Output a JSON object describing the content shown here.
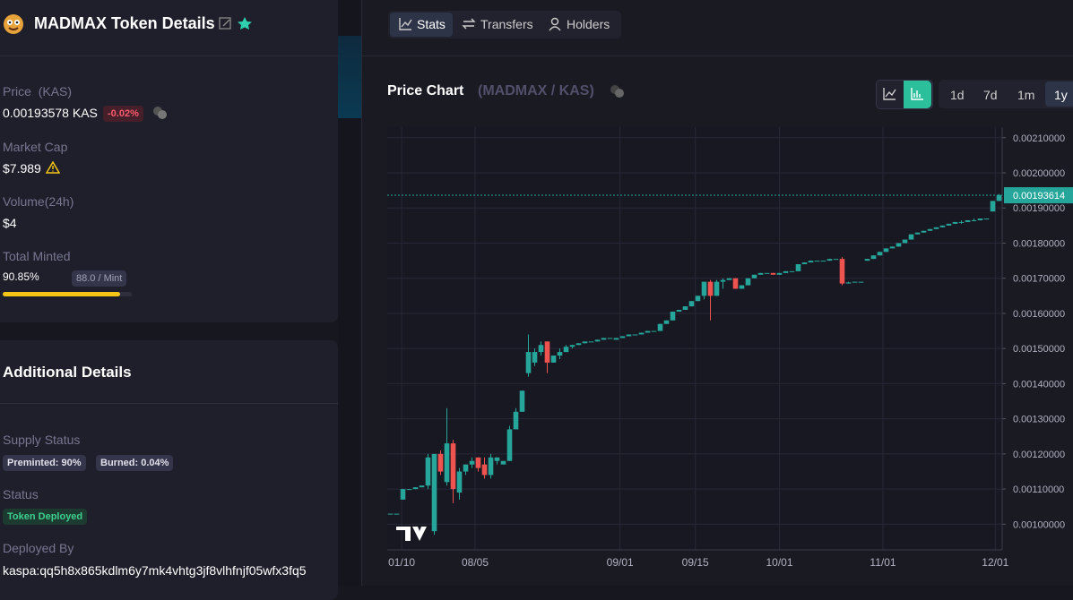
{
  "token": {
    "title": "MADMAX Token Details",
    "price_label": "Price",
    "price_unit": "(KAS)",
    "price": "0.00193578 KAS",
    "change": "-0.02%",
    "market_cap_label": "Market Cap",
    "market_cap": "$7.989",
    "volume_label": "Volume(24h)",
    "volume": "$4",
    "minted_label": "Total Minted",
    "minted": "90.85%",
    "minted_progress": 90.85,
    "per_mint": "88.0 / Mint"
  },
  "details": {
    "title": "Additional Details",
    "supply_label": "Supply Status",
    "preminted": "Preminted: 90%",
    "burned": "Burned: 0.04%",
    "status_label": "Status",
    "status": "Token Deployed",
    "deployed_label": "Deployed By",
    "deployed": "kaspa:qq5h8x865kdlm6y7mk4vhtg3jf8vlhfnjf05wfx3fq5"
  },
  "tabs": [
    "Stats",
    "Transfers",
    "Holders"
  ],
  "chart_header": {
    "title": "Price Chart",
    "pair": "(MADMAX / KAS)"
  },
  "ranges": [
    "1d",
    "7d",
    "1m",
    "1y"
  ],
  "chart_data": {
    "type": "candlestick",
    "up_color": "#26a69a",
    "down_color": "#ef5350",
    "open": [
      0.00103,
      0.00103,
      0.00107,
      0.0011,
      0.0011,
      0.001105,
      0.00111,
      0.00098,
      0.0012,
      0.00112,
      0.00123,
      0.00109,
      0.00115,
      0.00117,
      0.00119,
      0.00117,
      0.00114,
      0.00118,
      0.00117,
      0.00118,
      0.00127,
      0.00132,
      0.00143,
      0.00146,
      0.00149,
      0.00152,
      0.00146,
      0.00148,
      0.00149,
      0.001505,
      0.00151,
      0.001515,
      0.00152,
      0.00152,
      0.001525,
      0.00153,
      0.001525,
      0.00153,
      0.001535,
      0.00154,
      0.00154,
      0.001545,
      0.00155,
      0.00155,
      0.00157,
      0.00158,
      0.001605,
      0.00161,
      0.00162,
      0.001635,
      0.00165,
      0.00169,
      0.00165,
      0.00169,
      0.001695,
      0.0017,
      0.00167,
      0.00168,
      0.0017,
      0.00171,
      0.001715,
      0.001715,
      0.00171,
      0.001715,
      0.00172,
      0.00172,
      0.00174,
      0.001745,
      0.00175,
      0.00175,
      0.00175,
      0.001755,
      0.001755,
      0.001685,
      0.001688,
      0.00169,
      0.00175,
      0.001755,
      0.001765,
      0.001775,
      0.001785,
      0.00179,
      0.0018,
      0.00181,
      0.001825,
      0.00183,
      0.001835,
      0.00184,
      0.001845,
      0.00185,
      0.001855,
      0.00186,
      0.00186,
      0.001865,
      0.001865,
      0.00187,
      0.00189,
      0.00192
    ],
    "high": [
      0.00103,
      0.00103,
      0.0011,
      0.0011,
      0.001105,
      0.00111,
      0.0012,
      0.0012,
      0.00121,
      0.00133,
      0.00124,
      0.00116,
      0.00117,
      0.00119,
      0.00119,
      0.00119,
      0.0012,
      0.00119,
      0.00118,
      0.00128,
      0.00133,
      0.00138,
      0.00154,
      0.0015,
      0.00152,
      0.00152,
      0.00148,
      0.0015,
      0.00151,
      0.00151,
      0.001515,
      0.00152,
      0.00152,
      0.001525,
      0.00153,
      0.00153,
      0.00153,
      0.001535,
      0.00154,
      0.00154,
      0.001545,
      0.00155,
      0.00155,
      0.00157,
      0.00158,
      0.001605,
      0.00161,
      0.00162,
      0.001635,
      0.00165,
      0.00169,
      0.001695,
      0.001695,
      0.0017,
      0.0017,
      0.0017,
      0.00168,
      0.0017,
      0.00171,
      0.001715,
      0.001715,
      0.001715,
      0.001715,
      0.00172,
      0.00172,
      0.00174,
      0.001745,
      0.00175,
      0.00175,
      0.00175,
      0.001755,
      0.001755,
      0.00176,
      0.00169,
      0.00169,
      0.00169,
      0.001755,
      0.001765,
      0.001775,
      0.001785,
      0.00179,
      0.0018,
      0.00181,
      0.001825,
      0.00183,
      0.001835,
      0.00184,
      0.001845,
      0.00185,
      0.001855,
      0.00186,
      0.001865,
      0.001865,
      0.00187,
      0.00187,
      0.00187,
      0.00192,
      0.00194
    ],
    "low": [
      0.00103,
      0.00103,
      0.00107,
      0.0011,
      0.0011,
      0.001105,
      0.0011,
      0.00097,
      0.00114,
      0.00111,
      0.00106,
      0.00107,
      0.00114,
      0.00116,
      0.00115,
      0.00113,
      0.00113,
      0.00117,
      0.00117,
      0.00118,
      0.00127,
      0.00132,
      0.00142,
      0.00145,
      0.00148,
      0.00143,
      0.00146,
      0.00147,
      0.00149,
      0.0015,
      0.00151,
      0.001515,
      0.00152,
      0.00152,
      0.001525,
      0.00153,
      0.001525,
      0.00153,
      0.001535,
      0.00154,
      0.00154,
      0.001545,
      0.00155,
      0.00155,
      0.00157,
      0.00158,
      0.001605,
      0.00161,
      0.00162,
      0.001635,
      0.00164,
      0.00158,
      0.00165,
      0.00167,
      0.001695,
      0.00167,
      0.00167,
      0.00168,
      0.0017,
      0.00171,
      0.001715,
      0.00171,
      0.00171,
      0.001715,
      0.00172,
      0.00172,
      0.00174,
      0.001745,
      0.00175,
      0.00175,
      0.00175,
      0.001755,
      0.00168,
      0.001685,
      0.001688,
      0.00169,
      0.00175,
      0.001755,
      0.001765,
      0.001775,
      0.001785,
      0.00179,
      0.0018,
      0.00181,
      0.001825,
      0.00183,
      0.001835,
      0.00184,
      0.001845,
      0.00185,
      0.001855,
      0.001855,
      0.00186,
      0.001865,
      0.001865,
      0.00187,
      0.00189,
      0.00192
    ],
    "close": [
      0.00103,
      0.00103,
      0.0011,
      0.0011,
      0.001105,
      0.00111,
      0.00119,
      0.0012,
      0.00115,
      0.00123,
      0.0011,
      0.00115,
      0.00117,
      0.00118,
      0.00116,
      0.00114,
      0.00119,
      0.00119,
      0.00118,
      0.00127,
      0.00132,
      0.00138,
      0.00149,
      0.00149,
      0.00151,
      0.00146,
      0.00148,
      0.00149,
      0.001505,
      0.00151,
      0.001515,
      0.00152,
      0.00152,
      0.001525,
      0.00153,
      0.00153,
      0.00153,
      0.001535,
      0.00154,
      0.00154,
      0.001545,
      0.00155,
      0.00155,
      0.00157,
      0.00158,
      0.001605,
      0.00161,
      0.00162,
      0.001635,
      0.00165,
      0.00169,
      0.00165,
      0.00169,
      0.001695,
      0.0017,
      0.00167,
      0.00168,
      0.0017,
      0.00171,
      0.001715,
      0.001715,
      0.00171,
      0.001715,
      0.00172,
      0.00172,
      0.00174,
      0.001745,
      0.00175,
      0.00175,
      0.00175,
      0.001755,
      0.001755,
      0.001685,
      0.001688,
      0.00169,
      0.00169,
      0.001755,
      0.001765,
      0.001775,
      0.001785,
      0.00179,
      0.0018,
      0.00181,
      0.001825,
      0.00183,
      0.001835,
      0.00184,
      0.001845,
      0.00185,
      0.001855,
      0.00186,
      0.00186,
      0.001865,
      0.001865,
      0.00187,
      0.00187,
      0.00192,
      0.00193614
    ],
    "last_price": 0.00193614,
    "xlim": [
      -0.5,
      97.5
    ],
    "xticks": [
      {
        "value": 1.8,
        "label": "01/10"
      },
      {
        "value": 13.5,
        "label": "08/05"
      },
      {
        "value": 36.6,
        "label": "09/01"
      },
      {
        "value": 48.6,
        "label": "09/15"
      },
      {
        "value": 62,
        "label": "10/01"
      },
      {
        "value": 78.5,
        "label": "11/01"
      },
      {
        "value": 96.4,
        "label": "12/01"
      }
    ],
    "ylim": [
      0.000927,
      0.00213
    ],
    "yticks": [
      {
        "value": 0.0021,
        "label": "0.00210000"
      },
      {
        "value": 0.002,
        "label": "0.00200000"
      },
      {
        "value": 0.0019,
        "label": "0.00190000"
      },
      {
        "value": 0.0018,
        "label": "0.00180000"
      },
      {
        "value": 0.0017,
        "label": "0.00170000"
      },
      {
        "value": 0.0016,
        "label": "0.00160000"
      },
      {
        "value": 0.0015,
        "label": "0.00150000"
      },
      {
        "value": 0.0014,
        "label": "0.00140000"
      },
      {
        "value": 0.0013,
        "label": "0.00130000"
      },
      {
        "value": 0.0012,
        "label": "0.00120000"
      },
      {
        "value": 0.0011,
        "label": "0.00110000"
      },
      {
        "value": 0.001,
        "label": "0.00100000"
      }
    ],
    "grid": true
  }
}
